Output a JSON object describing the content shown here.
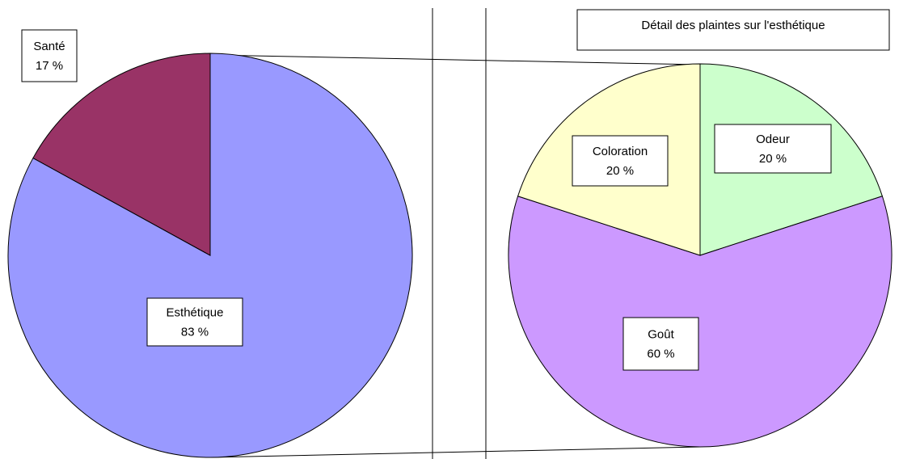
{
  "chart_data": [
    {
      "type": "pie",
      "categories": [
        "Esthétique",
        "Santé"
      ],
      "values": [
        83,
        17
      ],
      "value_labels": [
        "83 %",
        "17 %"
      ],
      "colors": [
        "#9999ff",
        "#993366"
      ]
    },
    {
      "type": "pie",
      "title": "Détail des plaintes sur l'esthétique",
      "categories": [
        "Odeur",
        "Goût",
        "Coloration"
      ],
      "values": [
        20,
        60,
        20
      ],
      "value_labels": [
        "20 %",
        "60 %",
        "20 %"
      ],
      "colors": [
        "#ccffcc",
        "#cc99ff",
        "#ffffcc"
      ]
    }
  ]
}
